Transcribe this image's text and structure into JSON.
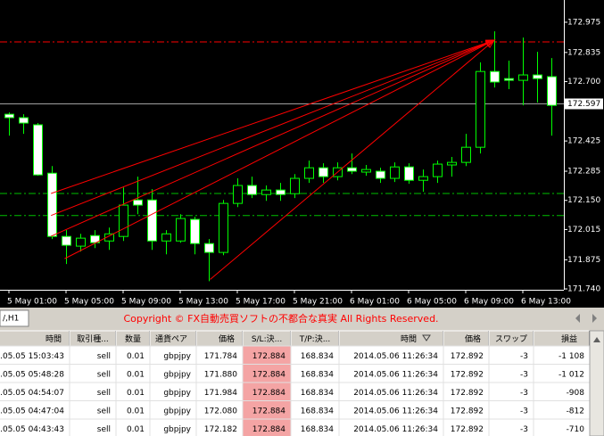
{
  "chart_data": {
    "type": "candlestick",
    "categories": [
      "5 May 01:00",
      null,
      null,
      null,
      "5 May 05:00",
      null,
      null,
      null,
      "5 May 09:00",
      null,
      null,
      null,
      "5 May 13:00",
      null,
      null,
      null,
      "5 May 17:00",
      null,
      null,
      null,
      "5 May 21:00",
      null,
      null,
      null,
      "6 May 01:00",
      null,
      null,
      null,
      "6 May 05:00",
      null,
      null,
      null,
      "6 May 09:00",
      null,
      null,
      null,
      "6 May 13:00",
      null,
      null
    ],
    "open": [
      172.549,
      172.533,
      172.5,
      172.276,
      171.983,
      171.938,
      171.987,
      171.962,
      171.983,
      172.152,
      172.152,
      171.962,
      171.962,
      172.062,
      171.95,
      171.909,
      172.136,
      172.219,
      172.177,
      172.198,
      172.181,
      172.252,
      172.301,
      172.26,
      172.301,
      172.281,
      172.285,
      172.252,
      172.305,
      172.243,
      172.26,
      172.314,
      172.326,
      172.396,
      172.747,
      172.714,
      172.706,
      172.731,
      172.723
    ],
    "high": [
      172.557,
      172.549,
      172.508,
      172.309,
      172.012,
      171.995,
      172.012,
      172.024,
      172.21,
      172.26,
      172.202,
      172.012,
      172.086,
      172.074,
      171.971,
      172.152,
      172.252,
      172.26,
      172.219,
      172.231,
      172.272,
      172.334,
      172.322,
      172.326,
      172.367,
      172.314,
      172.301,
      172.326,
      172.322,
      172.293,
      172.334,
      172.351,
      172.458,
      172.789,
      172.933,
      172.797,
      172.904,
      172.838,
      172.809
    ],
    "low": [
      172.45,
      172.458,
      172.264,
      171.971,
      171.855,
      171.913,
      171.929,
      171.921,
      171.962,
      172.086,
      171.921,
      171.9,
      171.954,
      171.9,
      171.776,
      171.896,
      172.119,
      172.161,
      172.148,
      172.148,
      172.161,
      172.231,
      172.231,
      172.243,
      172.272,
      172.264,
      172.231,
      172.235,
      172.227,
      172.19,
      172.231,
      172.26,
      172.309,
      172.367,
      172.673,
      172.665,
      172.59,
      172.603,
      172.45
    ],
    "close": [
      172.533,
      172.508,
      172.268,
      171.983,
      171.942,
      171.975,
      171.954,
      171.995,
      172.128,
      172.128,
      171.962,
      171.995,
      172.066,
      171.95,
      171.909,
      172.136,
      172.219,
      172.177,
      172.198,
      172.177,
      172.252,
      172.301,
      172.26,
      172.301,
      172.285,
      172.293,
      172.252,
      172.305,
      172.243,
      172.26,
      172.318,
      172.326,
      172.396,
      172.747,
      172.698,
      172.706,
      172.731,
      172.714,
      172.59
    ],
    "bull_color": "#000000",
    "bear_color": "#ffffff",
    "outline_color": "#00ff00",
    "ylim": [
      171.736,
      173.078
    ],
    "yticks": [
      172.975,
      172.835,
      {
        "value": 172.7,
        "label": "172.700"
      },
      172.425,
      172.285,
      {
        "value": 172.15,
        "label": "172.150"
      },
      172.015,
      171.875,
      {
        "value": 171.74,
        "label": "171.740"
      }
    ],
    "bid": 172.597,
    "levels": [
      {
        "value": 172.884,
        "color": "#ff0000"
      },
      {
        "value": 172.182,
        "color": "#00c000"
      },
      {
        "value": 172.08,
        "color": "#00c000"
      }
    ],
    "arrows": [
      {
        "x": [
          2.95,
          34.0
        ],
        "y": [
          172.182,
          172.892
        ]
      },
      {
        "x": [
          2.95,
          34.0
        ],
        "y": [
          172.08,
          172.892
        ]
      },
      {
        "x": [
          2.95,
          34.0
        ],
        "y": [
          171.984,
          172.892
        ]
      },
      {
        "x": [
          3.9,
          34.0
        ],
        "y": [
          171.88,
          172.892
        ]
      },
      {
        "x": [
          14.1,
          34.0
        ],
        "y": [
          171.784,
          172.892
        ]
      }
    ],
    "arrow_color": "#ff0000"
  },
  "terminal": {
    "tab": "/,H1",
    "notice": "Copyright © FX自動売買ソフトの不都合な真実 All Rights Reserved."
  },
  "table": {
    "columns": [
      "時間",
      "取引種...",
      "数量",
      "通貨ペア",
      "価格",
      "S/L:決...",
      "T/P:決...",
      "時間",
      "価格",
      "スワップ",
      "損益"
    ],
    "rows": [
      [
        ".05.05 15:03:43",
        "sell",
        "0.01",
        "gbpjpy",
        "171.784",
        "172.884",
        "168.834",
        "2014.05.06 11:26:34",
        "172.892",
        "-3",
        "-1 108"
      ],
      [
        ".05.05 05:48:28",
        "sell",
        "0.01",
        "gbpjpy",
        "171.880",
        "172.884",
        "168.834",
        "2014.05.06 11:26:34",
        "172.892",
        "-3",
        "-1 012"
      ],
      [
        ".05.05 04:54:07",
        "sell",
        "0.01",
        "gbpjpy",
        "171.984",
        "172.884",
        "168.834",
        "2014.05.06 11:26:34",
        "172.892",
        "-3",
        "-908"
      ],
      [
        ".05.05 04:47:04",
        "sell",
        "0.01",
        "gbpjpy",
        "172.080",
        "172.884",
        "168.834",
        "2014.05.06 11:26:34",
        "172.892",
        "-3",
        "-812"
      ],
      [
        ".05.05 04:43:43",
        "sell",
        "0.01",
        "gbpjpy",
        "172.182",
        "172.884",
        "168.834",
        "2014.05.06 11:26:34",
        "172.892",
        "-3",
        "-710"
      ]
    ]
  }
}
